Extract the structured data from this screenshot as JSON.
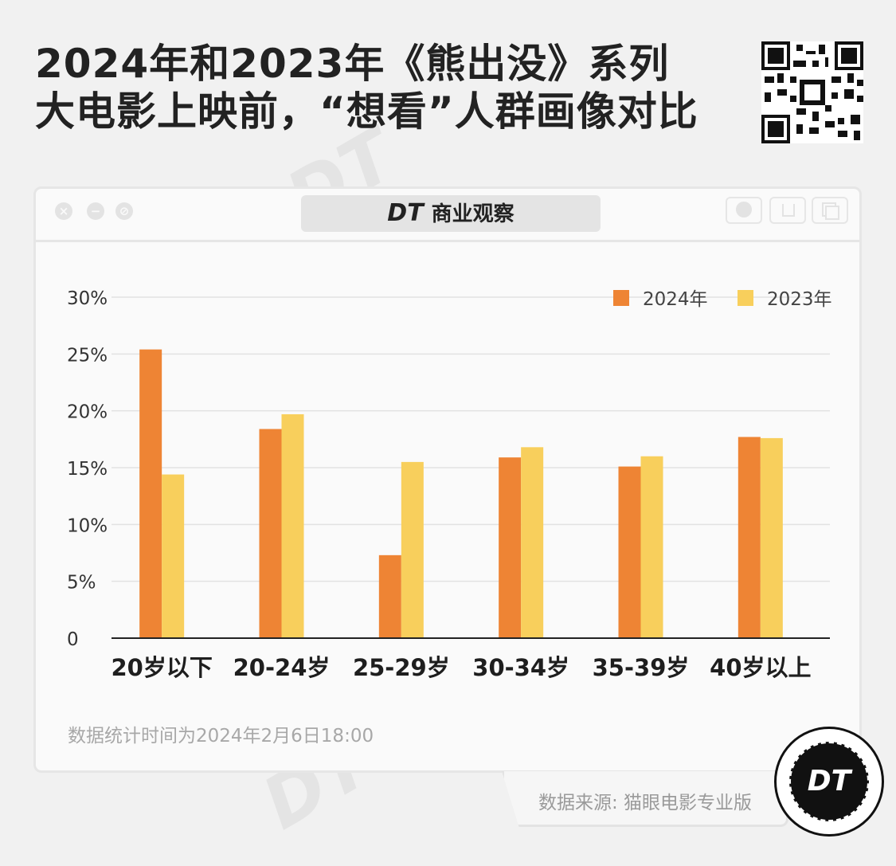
{
  "header": {
    "title_line1": "2024年和2023年《熊出没》系列",
    "title_line2": "大电影上映前，“想看”人群画像对比"
  },
  "window": {
    "brand_mark": "DT",
    "brand_name": "商业观察"
  },
  "chart_data": {
    "type": "bar",
    "categories": [
      "20岁以下",
      "20-24岁",
      "25-29岁",
      "30-34岁",
      "35-39岁",
      "40岁以上"
    ],
    "series": [
      {
        "name": "2024年",
        "values": [
          25.4,
          18.4,
          7.3,
          15.9,
          15.1,
          17.7
        ],
        "color": "#ee8434"
      },
      {
        "name": "2023年",
        "values": [
          14.4,
          19.7,
          15.5,
          16.8,
          16.0,
          17.6
        ],
        "color": "#f8cf5c"
      }
    ],
    "ylim": [
      0,
      30
    ],
    "yticks": [
      0,
      5,
      10,
      15,
      20,
      25,
      30
    ],
    "ytick_labels": [
      "0",
      "5%",
      "10%",
      "15%",
      "20%",
      "25%",
      "30%"
    ],
    "grid": true,
    "legend": "top-right"
  },
  "footer": {
    "note": "数据统计时间为2024年2月6日18:00",
    "source": "数据来源: 猫眼电影专业版",
    "logo_text": "DT"
  },
  "icons": {
    "window_buttons": [
      "close-icon",
      "minimize-icon",
      "no-entry-icon"
    ],
    "toolbar": [
      "record-icon",
      "upload-icon",
      "copy-icon"
    ]
  },
  "colors": {
    "series_2024": "#ee8434",
    "series_2023": "#f8cf5c"
  }
}
